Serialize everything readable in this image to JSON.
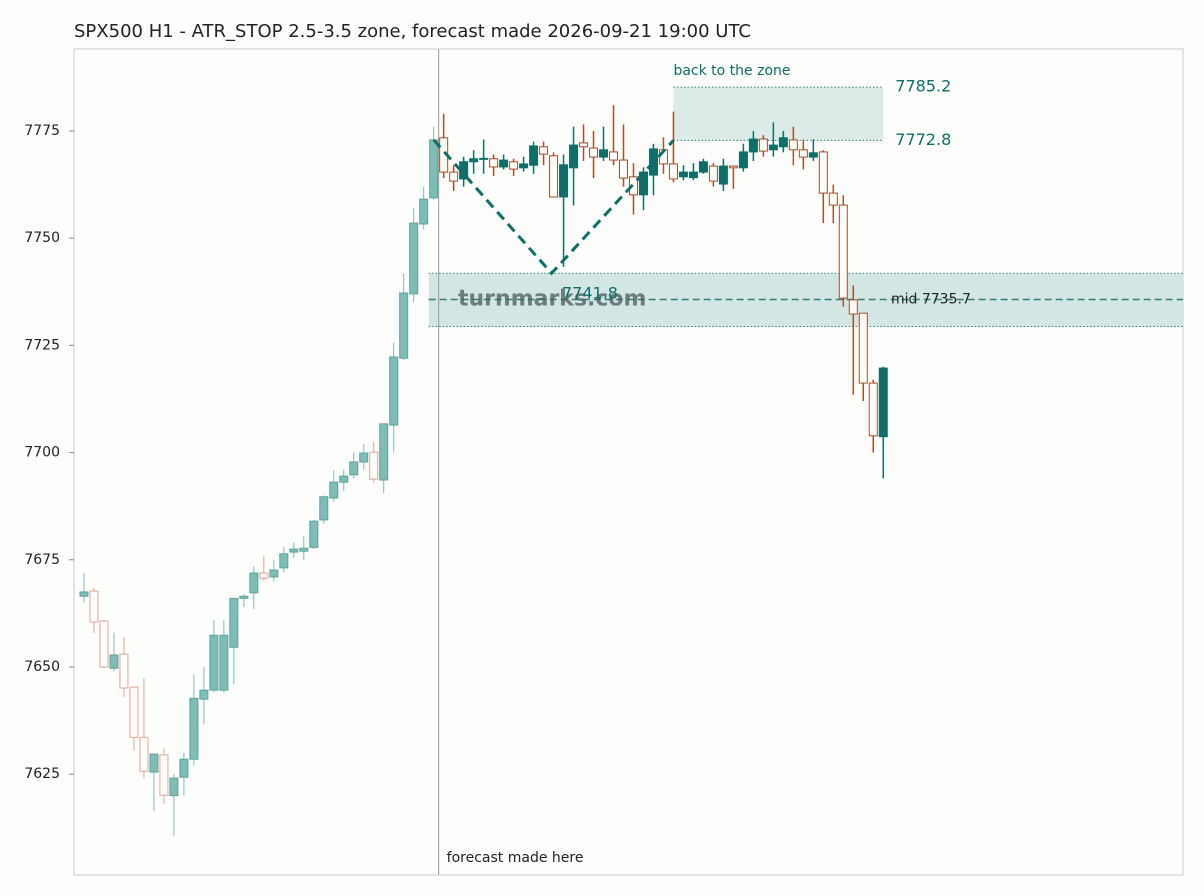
{
  "chart_data": {
    "type": "candlestick",
    "title": "SPX500 H1 - ATR_STOP 2.5-3.5 zone, forecast made 2026-09-21 19:00 UTC",
    "xlim": [
      -1,
      110
    ],
    "ylim": [
      7601.5,
      7794.1
    ],
    "yticks": [
      7625,
      7650,
      7675,
      7700,
      7725,
      7750,
      7775
    ],
    "colors": {
      "up": "#0f6e67",
      "down": "#a0522d",
      "history_up": "#80bcb6",
      "history_down": "#e2a598"
    },
    "candles": [
      {
        "o": 7666.5,
        "h": 7672,
        "l": 7665,
        "c": 7667.5
      },
      {
        "o": 7667.7,
        "h": 7668.4,
        "l": 7657.9,
        "c": 7660.5
      },
      {
        "o": 7660.7,
        "h": 7661,
        "l": 7649.7,
        "c": 7650
      },
      {
        "o": 7649.7,
        "h": 7658,
        "l": 7649,
        "c": 7652.8
      },
      {
        "o": 7653,
        "h": 7657,
        "l": 7643,
        "c": 7645.1
      },
      {
        "o": 7645.3,
        "h": 7645.5,
        "l": 7630.5,
        "c": 7633.6
      },
      {
        "o": 7633.6,
        "h": 7647.4,
        "l": 7624,
        "c": 7625.7
      },
      {
        "o": 7625.5,
        "h": 7629.7,
        "l": 7616.4,
        "c": 7629.7
      },
      {
        "o": 7629.5,
        "h": 7631,
        "l": 7618,
        "c": 7620.1
      },
      {
        "o": 7620,
        "h": 7625,
        "l": 7610.5,
        "c": 7624.1
      },
      {
        "o": 7624.3,
        "h": 7630,
        "l": 7620,
        "c": 7628.5
      },
      {
        "o": 7628.5,
        "h": 7648.3,
        "l": 7627,
        "c": 7642.7
      },
      {
        "o": 7642.5,
        "h": 7650,
        "l": 7636.6,
        "c": 7644.6
      },
      {
        "o": 7644.6,
        "h": 7661,
        "l": 7644,
        "c": 7657.4
      },
      {
        "o": 7644.6,
        "h": 7661,
        "l": 7644,
        "c": 7657.4
      },
      {
        "o": 7654.6,
        "h": 7666,
        "l": 7646,
        "c": 7666
      },
      {
        "o": 7666,
        "h": 7667,
        "l": 7664,
        "c": 7666.5
      },
      {
        "o": 7667.3,
        "h": 7673.5,
        "l": 7663.5,
        "c": 7671.9
      },
      {
        "o": 7671.9,
        "h": 7676,
        "l": 7670,
        "c": 7670.7
      },
      {
        "o": 7671,
        "h": 7675,
        "l": 7670,
        "c": 7672.6
      },
      {
        "o": 7673.1,
        "h": 7678,
        "l": 7672,
        "c": 7676.4
      },
      {
        "o": 7676.8,
        "h": 7679,
        "l": 7675.5,
        "c": 7677.5
      },
      {
        "o": 7677,
        "h": 7680.5,
        "l": 7675,
        "c": 7677.7
      },
      {
        "o": 7677.9,
        "h": 7684.3,
        "l": 7677.5,
        "c": 7684
      },
      {
        "o": 7684.3,
        "h": 7690,
        "l": 7683.5,
        "c": 7689.7
      },
      {
        "o": 7689.4,
        "h": 7695.9,
        "l": 7688.5,
        "c": 7693.1
      },
      {
        "o": 7693.1,
        "h": 7696,
        "l": 7691,
        "c": 7694.5
      },
      {
        "o": 7694.8,
        "h": 7700,
        "l": 7694,
        "c": 7697.8
      },
      {
        "o": 7697.8,
        "h": 7702,
        "l": 7696,
        "c": 7699.9
      },
      {
        "o": 7700.1,
        "h": 7702.5,
        "l": 7693,
        "c": 7693.8
      },
      {
        "o": 7693.6,
        "h": 7706.7,
        "l": 7690.5,
        "c": 7706.7
      },
      {
        "o": 7706.4,
        "h": 7725.6,
        "l": 7700,
        "c": 7722.3
      },
      {
        "o": 7722,
        "h": 7741.8,
        "l": 7721.5,
        "c": 7737.2
      },
      {
        "o": 7737,
        "h": 7757,
        "l": 7735,
        "c": 7753.5
      },
      {
        "o": 7753.3,
        "h": 7762,
        "l": 7752,
        "c": 7759.1
      },
      {
        "o": 7759.4,
        "h": 7776,
        "l": 7758.8,
        "c": 7772.9
      },
      {
        "o": 7773.4,
        "h": 7779,
        "l": 7764,
        "c": 7765.4
      },
      {
        "o": 7765.4,
        "h": 7767,
        "l": 7761,
        "c": 7763.3
      },
      {
        "o": 7763.8,
        "h": 7769,
        "l": 7762,
        "c": 7767.8
      },
      {
        "o": 7767.8,
        "h": 7770.5,
        "l": 7765,
        "c": 7768.5
      },
      {
        "o": 7768.4,
        "h": 7773,
        "l": 7765,
        "c": 7768.6
      },
      {
        "o": 7768.5,
        "h": 7769.5,
        "l": 7764.5,
        "c": 7766.6
      },
      {
        "o": 7766.6,
        "h": 7769.5,
        "l": 7766,
        "c": 7768.2
      },
      {
        "o": 7767.8,
        "h": 7768.5,
        "l": 7764.5,
        "c": 7766.1
      },
      {
        "o": 7766.4,
        "h": 7769,
        "l": 7765.5,
        "c": 7767.3
      },
      {
        "o": 7767,
        "h": 7772.5,
        "l": 7765,
        "c": 7771.5
      },
      {
        "o": 7771.3,
        "h": 7772.5,
        "l": 7767,
        "c": 7769.6
      },
      {
        "o": 7769.2,
        "h": 7770,
        "l": 7759.5,
        "c": 7759.6
      },
      {
        "o": 7759.6,
        "h": 7769.5,
        "l": 7743.3,
        "c": 7767.1
      },
      {
        "o": 7766.4,
        "h": 7776,
        "l": 7757.6,
        "c": 7771.7
      },
      {
        "o": 7772.2,
        "h": 7776.5,
        "l": 7768,
        "c": 7771.3
      },
      {
        "o": 7771,
        "h": 7775,
        "l": 7764,
        "c": 7768.9
      },
      {
        "o": 7768.9,
        "h": 7776,
        "l": 7768,
        "c": 7770.6
      },
      {
        "o": 7770.1,
        "h": 7781,
        "l": 7767,
        "c": 7768.2
      },
      {
        "o": 7768.2,
        "h": 7776.5,
        "l": 7762,
        "c": 7764
      },
      {
        "o": 7764.3,
        "h": 7767.5,
        "l": 7755.5,
        "c": 7760.1
      },
      {
        "o": 7760.1,
        "h": 7766.5,
        "l": 7756.5,
        "c": 7765.4
      },
      {
        "o": 7764.7,
        "h": 7772,
        "l": 7760,
        "c": 7770.8
      },
      {
        "o": 7770.6,
        "h": 7773.5,
        "l": 7765,
        "c": 7767.3
      },
      {
        "o": 7767.3,
        "h": 7779.5,
        "l": 7763,
        "c": 7763.8
      },
      {
        "o": 7764.3,
        "h": 7767,
        "l": 7763.5,
        "c": 7765.4
      },
      {
        "o": 7764.1,
        "h": 7767.5,
        "l": 7763.5,
        "c": 7765.4
      },
      {
        "o": 7765.4,
        "h": 7768.5,
        "l": 7765,
        "c": 7767.8
      },
      {
        "o": 7766.8,
        "h": 7767.5,
        "l": 7762,
        "c": 7763.3
      },
      {
        "o": 7762.6,
        "h": 7768.5,
        "l": 7761,
        "c": 7766.8
      },
      {
        "o": 7766.8,
        "h": 7767,
        "l": 7761.5,
        "c": 7766.4
      },
      {
        "o": 7766.4,
        "h": 7772,
        "l": 7765.5,
        "c": 7770.1
      },
      {
        "o": 7770.1,
        "h": 7775,
        "l": 7768,
        "c": 7773.1
      },
      {
        "o": 7773.1,
        "h": 7774,
        "l": 7769,
        "c": 7770.3
      },
      {
        "o": 7770.6,
        "h": 7777,
        "l": 7769,
        "c": 7771.7
      },
      {
        "o": 7771.3,
        "h": 7775,
        "l": 7770,
        "c": 7773.4
      },
      {
        "o": 7772.9,
        "h": 7776,
        "l": 7767,
        "c": 7770.6
      },
      {
        "o": 7770.6,
        "h": 7773,
        "l": 7766,
        "c": 7768.9
      },
      {
        "o": 7768.9,
        "h": 7773,
        "l": 7768,
        "c": 7769.9
      },
      {
        "o": 7770.1,
        "h": 7770.5,
        "l": 7753.5,
        "c": 7760.5
      },
      {
        "o": 7760.5,
        "h": 7762.5,
        "l": 7753.5,
        "c": 7757.7
      },
      {
        "o": 7757.7,
        "h": 7760,
        "l": 7734,
        "c": 7736
      },
      {
        "o": 7735.6,
        "h": 7739,
        "l": 7713.5,
        "c": 7732.3
      },
      {
        "o": 7732.5,
        "h": 7732.5,
        "l": 7712,
        "c": 7716.2
      },
      {
        "o": 7716.2,
        "h": 7717,
        "l": 7700,
        "c": 7703.9
      },
      {
        "o": 7703.7,
        "h": 7720,
        "l": 7694,
        "c": 7719.7
      }
    ],
    "forecast_start": 35.5,
    "forecast_label": "forecast made here",
    "zone": {
      "x_start": 34.5,
      "low": 7729.4,
      "high": 7741.8,
      "mid": 7735.7,
      "mid_label": "mid 7735.7"
    },
    "target": {
      "x_start": 59,
      "x_end": 80,
      "low": 7772.8,
      "high": 7785.2,
      "label": "back to the zone"
    },
    "path": {
      "x": [
        35,
        46.8,
        59
      ],
      "y": [
        7772.9,
        7741.8,
        7772.8
      ]
    },
    "watermark": "turnmarks.com"
  }
}
